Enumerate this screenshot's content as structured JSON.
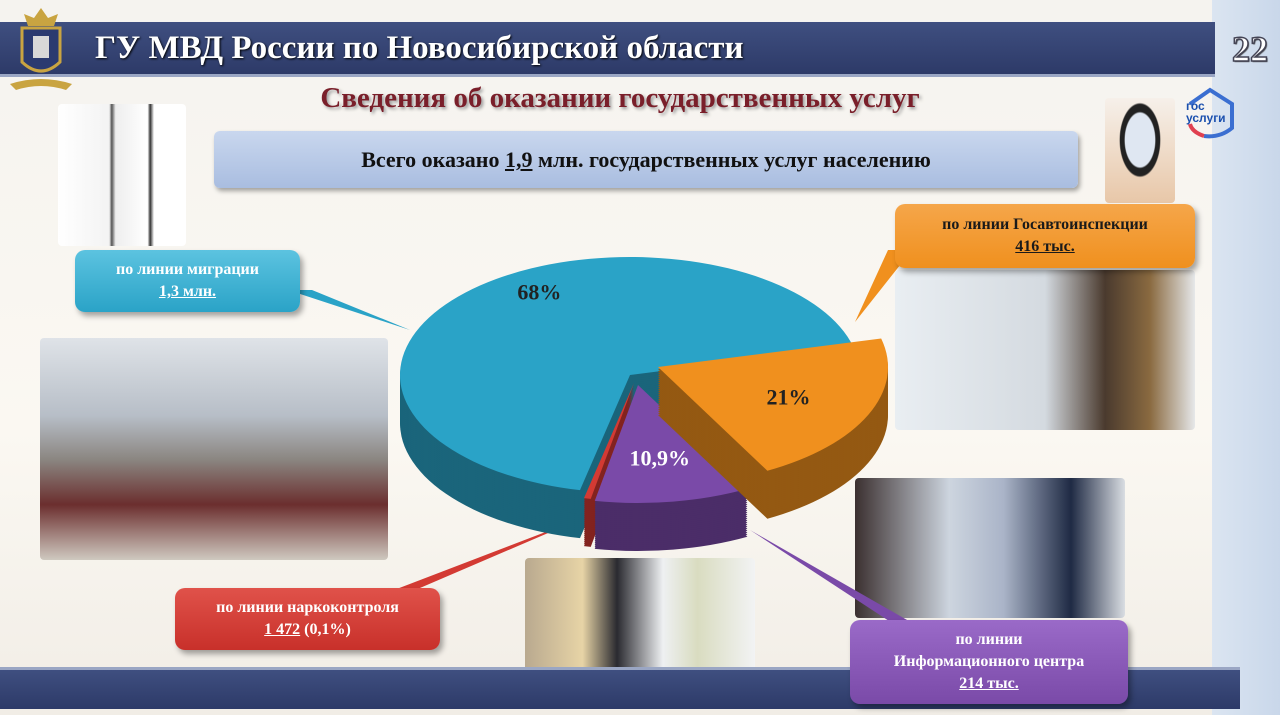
{
  "header": {
    "title": "ГУ МВД России по Новосибирской области",
    "page_number": "22"
  },
  "subtitle": "Сведения об оказании государственных услуг",
  "total": {
    "prefix": "Всего оказано",
    "value": "1,9",
    "suffix": "млн. государственных услуг населению"
  },
  "logo_gosuslugi": {
    "line1": "гос",
    "line2": "услуги"
  },
  "callouts": {
    "migration": {
      "label": "по линии миграции",
      "value": "1,3 млн."
    },
    "gai": {
      "label": "по линии Госавтоинспекции",
      "value": "416 тыс."
    },
    "narco": {
      "label": "по линии наркоконтроля",
      "value": "1 472",
      "extra": "(0,1%)"
    },
    "info": {
      "label1": "по линии",
      "label2": "Информационного центра",
      "value": "214 тыс."
    }
  },
  "chart_data": {
    "type": "pie",
    "style": "3d-exploded",
    "slices": [
      {
        "key": "migration",
        "value": 68,
        "label": "68%",
        "color": "#2aa3c7"
      },
      {
        "key": "gai",
        "value": 21,
        "label": "21%",
        "color": "#f0901e"
      },
      {
        "key": "info",
        "value": 10.9,
        "label": "10,9%",
        "color": "#7a4aa8"
      },
      {
        "key": "narco",
        "value": 0.1,
        "label": "",
        "color": "#d33a33"
      }
    ]
  }
}
